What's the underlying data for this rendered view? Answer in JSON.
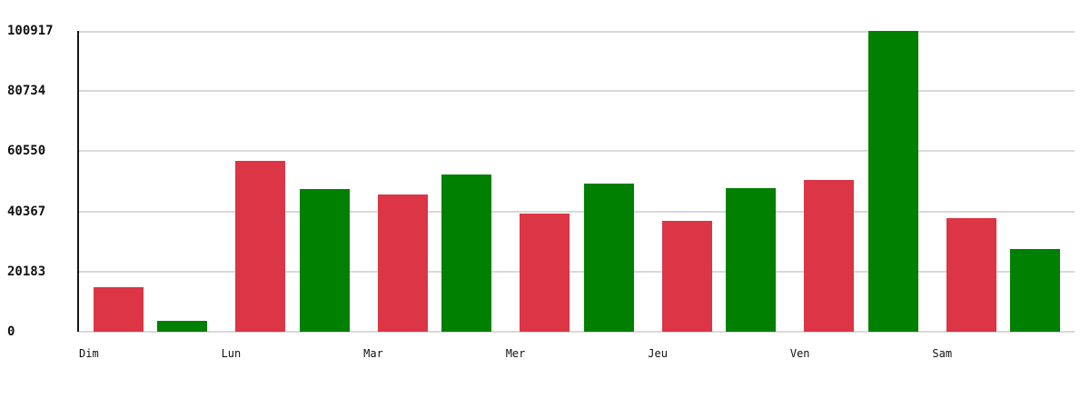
{
  "chart_data": {
    "type": "bar",
    "categories": [
      "Dim",
      "Lun",
      "Mar",
      "Mer",
      "Jeu",
      "Ven",
      "Sam"
    ],
    "series": [
      {
        "name": "red",
        "color": "#dc3545",
        "values": [
          14900,
          57400,
          46000,
          39700,
          37300,
          51000,
          38200
        ]
      },
      {
        "name": "green",
        "color": "#008000",
        "values": [
          3800,
          47800,
          52800,
          49800,
          48200,
          100917,
          27800
        ]
      }
    ],
    "yticks": [
      0,
      20183,
      40367,
      60550,
      80734,
      100917
    ],
    "ylim": [
      0,
      100917
    ],
    "grid": true,
    "legend_position": "none",
    "background_color": "#ffffff",
    "grid_color": "#d9d9d9",
    "axis_color": "#141414",
    "tick_label_color": "#111111"
  }
}
